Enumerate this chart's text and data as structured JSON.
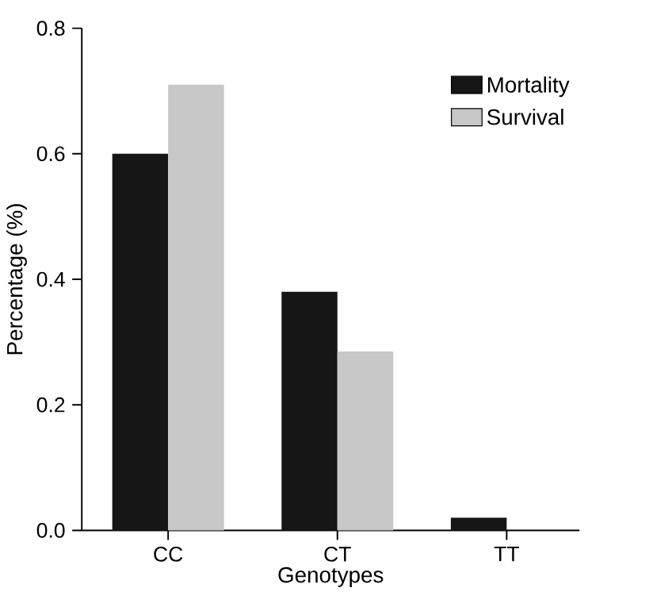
{
  "chart_data": {
    "type": "bar",
    "xlabel": "Genotypes",
    "ylabel": "Percentage (%)",
    "categories": [
      "CC",
      "CT",
      "TT"
    ],
    "series": [
      {
        "name": "Mortality",
        "color": "#161616",
        "values": [
          0.6,
          0.38,
          0.02
        ]
      },
      {
        "name": "Survival",
        "color": "#c8c8c8",
        "values": [
          0.71,
          0.285,
          0
        ]
      }
    ],
    "ylim": [
      0,
      0.8
    ],
    "yticks": [
      {
        "value": 0,
        "label": "0.0"
      },
      {
        "value": 0.2,
        "label": "0.2"
      },
      {
        "value": 0.4,
        "label": "0.4"
      },
      {
        "value": 0.6,
        "label": "0.6"
      },
      {
        "value": 0.8,
        "label": "0.8"
      }
    ],
    "legend": "top right"
  }
}
